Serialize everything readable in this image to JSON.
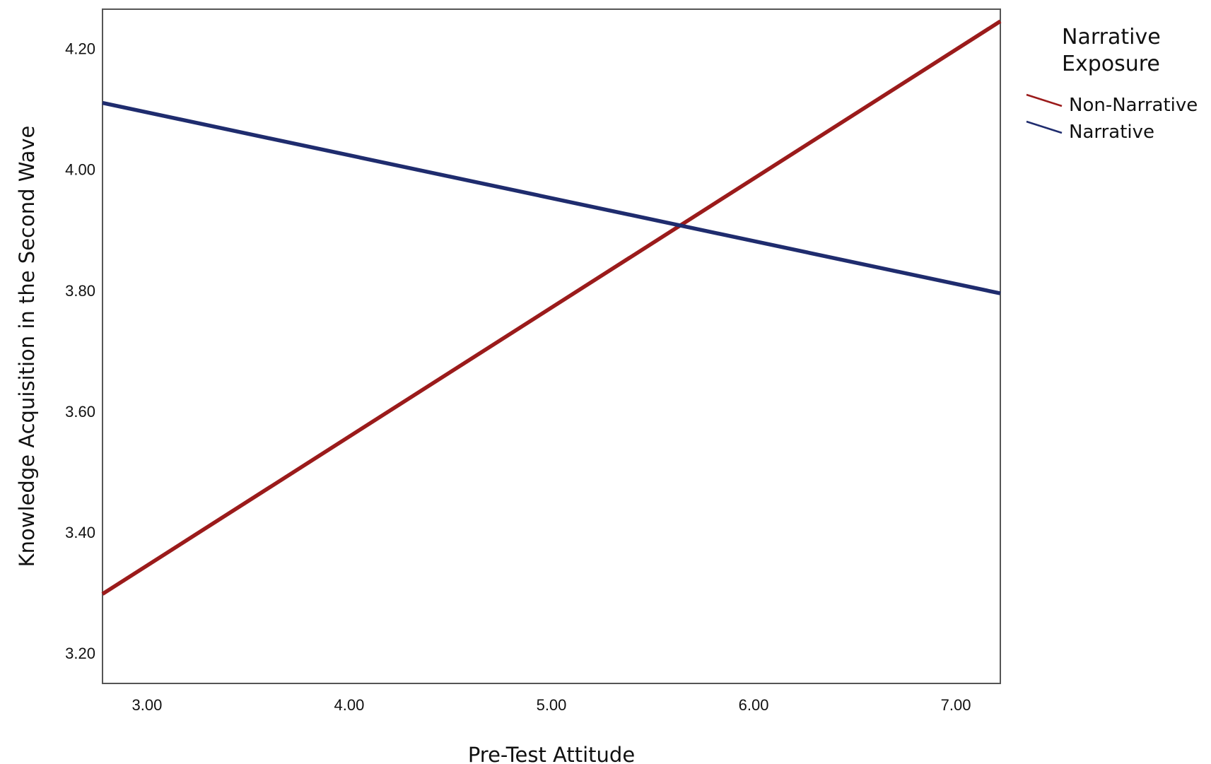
{
  "chart_data": {
    "type": "line",
    "xlabel": "Pre-Test Attitude",
    "ylabel": "Knowledge Acquisition in the Second Wave",
    "xlim": [
      2.78,
      7.22
    ],
    "ylim": [
      3.15,
      4.265
    ],
    "x_ticks": [
      "3.00",
      "4.00",
      "5.00",
      "6.00",
      "7.00"
    ],
    "y_ticks": [
      "3.20",
      "3.40",
      "3.60",
      "3.80",
      "4.00",
      "4.20"
    ],
    "legend": {
      "title_lines": [
        "Narrative",
        "Exposure"
      ],
      "position": "right"
    },
    "grid": false,
    "series": [
      {
        "name": "Non-Narrative",
        "color": "#9B1B1B",
        "x": [
          2.78,
          7.22
        ],
        "y": [
          3.298,
          4.245
        ]
      },
      {
        "name": "Narrative",
        "color": "#1F2C6E",
        "x": [
          2.78,
          7.22
        ],
        "y": [
          4.11,
          3.795
        ]
      }
    ]
  }
}
